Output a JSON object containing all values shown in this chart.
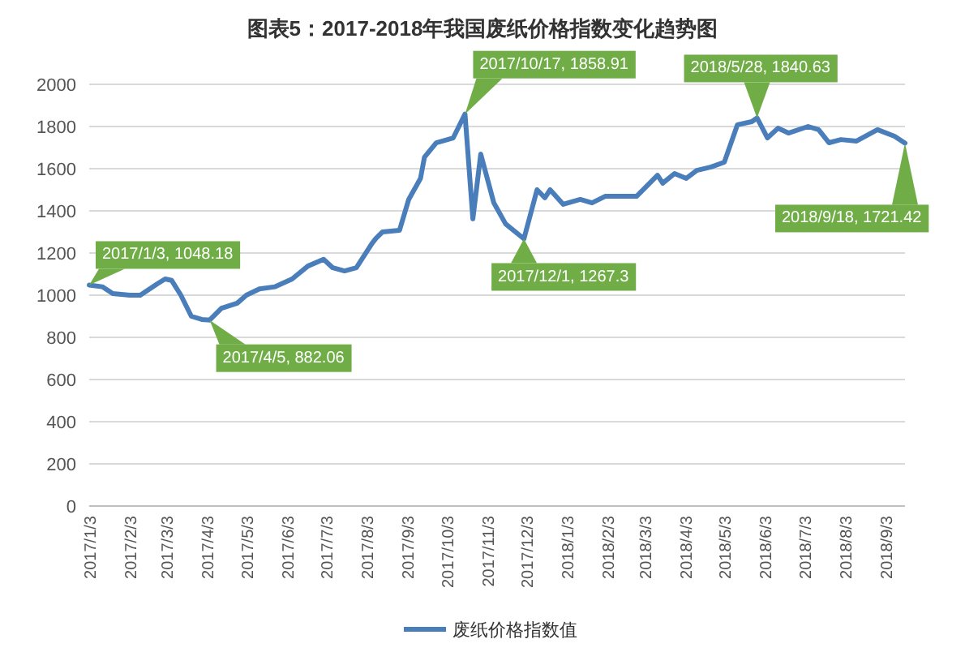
{
  "chart_data": {
    "type": "line",
    "title": "图表5：2017-2018年我国废纸价格指数变化趋势图",
    "x": [
      "2017-01-03",
      "2017-01-13",
      "2017-01-21",
      "2017-02-03",
      "2017-02-11",
      "2017-02-24",
      "2017-03-02",
      "2017-03-07",
      "2017-03-14",
      "2017-03-22",
      "2017-03-30",
      "2017-04-05",
      "2017-04-14",
      "2017-04-26",
      "2017-05-03",
      "2017-05-13",
      "2017-05-25",
      "2017-06-07",
      "2017-06-19",
      "2017-07-01",
      "2017-07-08",
      "2017-07-17",
      "2017-07-26",
      "2017-08-07",
      "2017-08-10",
      "2017-08-15",
      "2017-08-28",
      "2017-09-04",
      "2017-09-13",
      "2017-09-16",
      "2017-09-25",
      "2017-10-08",
      "2017-10-17",
      "2017-10-23",
      "2017-10-29",
      "2017-11-08",
      "2017-11-17",
      "2017-12-01",
      "2017-12-11",
      "2017-12-17",
      "2017-12-21",
      "2017-12-31",
      "2018-01-13",
      "2018-01-22",
      "2018-02-01",
      "2018-02-25",
      "2018-03-13",
      "2018-03-17",
      "2018-03-26",
      "2018-04-04",
      "2018-04-12",
      "2018-04-23",
      "2018-05-03",
      "2018-05-13",
      "2018-05-24",
      "2018-05-28",
      "2018-06-05",
      "2018-06-13",
      "2018-06-21",
      "2018-07-06",
      "2018-07-14",
      "2018-07-22",
      "2018-07-31",
      "2018-08-12",
      "2018-08-28",
      "2018-09-10",
      "2018-09-18"
    ],
    "series": [
      {
        "name": "废纸价格指数值",
        "color": "#4a7ebb",
        "values": [
          1048.18,
          1040,
          1008,
          1000,
          1000,
          1054,
          1077,
          1070,
          1000,
          900,
          885,
          882.06,
          938,
          962,
          1000,
          1030,
          1040,
          1077,
          1138,
          1170,
          1130,
          1115,
          1130,
          1246,
          1270,
          1300,
          1308,
          1454,
          1554,
          1654,
          1723,
          1746,
          1858.91,
          1362,
          1669,
          1438,
          1338,
          1267.3,
          1500,
          1462,
          1500,
          1431,
          1454,
          1438,
          1469,
          1469,
          1569,
          1531,
          1577,
          1554,
          1592,
          1608,
          1631,
          1808,
          1823,
          1840.63,
          1746,
          1792,
          1769,
          1800,
          1785,
          1723,
          1738,
          1731,
          1785,
          1754,
          1721.42
        ]
      }
    ],
    "ylim": [
      0,
      2000
    ],
    "yticks": [
      0,
      200,
      400,
      600,
      800,
      1000,
      1200,
      1400,
      1600,
      1800,
      2000
    ],
    "xlim": [
      "2017-01-03",
      "2018-09-18"
    ],
    "xticks": [
      {
        "value": "2017-01-03",
        "label": "2017/1/3"
      },
      {
        "value": "2017-02-03",
        "label": "2017/2/3"
      },
      {
        "value": "2017-03-03",
        "label": "2017/3/3"
      },
      {
        "value": "2017-04-03",
        "label": "2017/4/3"
      },
      {
        "value": "2017-05-03",
        "label": "2017/5/3"
      },
      {
        "value": "2017-06-03",
        "label": "2017/6/3"
      },
      {
        "value": "2017-07-03",
        "label": "2017/7/3"
      },
      {
        "value": "2017-08-03",
        "label": "2017/8/3"
      },
      {
        "value": "2017-09-03",
        "label": "2017/9/3"
      },
      {
        "value": "2017-10-03",
        "label": "2017/10/3"
      },
      {
        "value": "2017-11-03",
        "label": "2017/11/3"
      },
      {
        "value": "2017-12-03",
        "label": "2017/12/3"
      },
      {
        "value": "2018-01-03",
        "label": "2018/1/3"
      },
      {
        "value": "2018-02-03",
        "label": "2018/2/3"
      },
      {
        "value": "2018-03-03",
        "label": "2018/3/3"
      },
      {
        "value": "2018-04-03",
        "label": "2018/4/3"
      },
      {
        "value": "2018-05-03",
        "label": "2018/5/3"
      },
      {
        "value": "2018-06-03",
        "label": "2018/6/3"
      },
      {
        "value": "2018-07-03",
        "label": "2018/7/3"
      },
      {
        "value": "2018-08-03",
        "label": "2018/8/3"
      },
      {
        "value": "2018-09-03",
        "label": "2018/9/3"
      }
    ],
    "grid": "y",
    "legend": "bottom",
    "annotations": [
      {
        "text": "2017/1/3, 1048.18",
        "x": "2017-01-03",
        "y": 1048.18
      },
      {
        "text": "2017/4/5, 882.06",
        "x": "2017-04-05",
        "y": 882.06
      },
      {
        "text": "2017/10/17, 1858.91",
        "x": "2017-10-17",
        "y": 1858.91
      },
      {
        "text": "2017/12/1, 1267.3",
        "x": "2017-12-01",
        "y": 1267.3
      },
      {
        "text": "2018/5/28, 1840.63",
        "x": "2018-05-28",
        "y": 1840.63
      },
      {
        "text": "2018/9/18, 1721.42",
        "x": "2018-09-18",
        "y": 1721.42
      }
    ]
  }
}
